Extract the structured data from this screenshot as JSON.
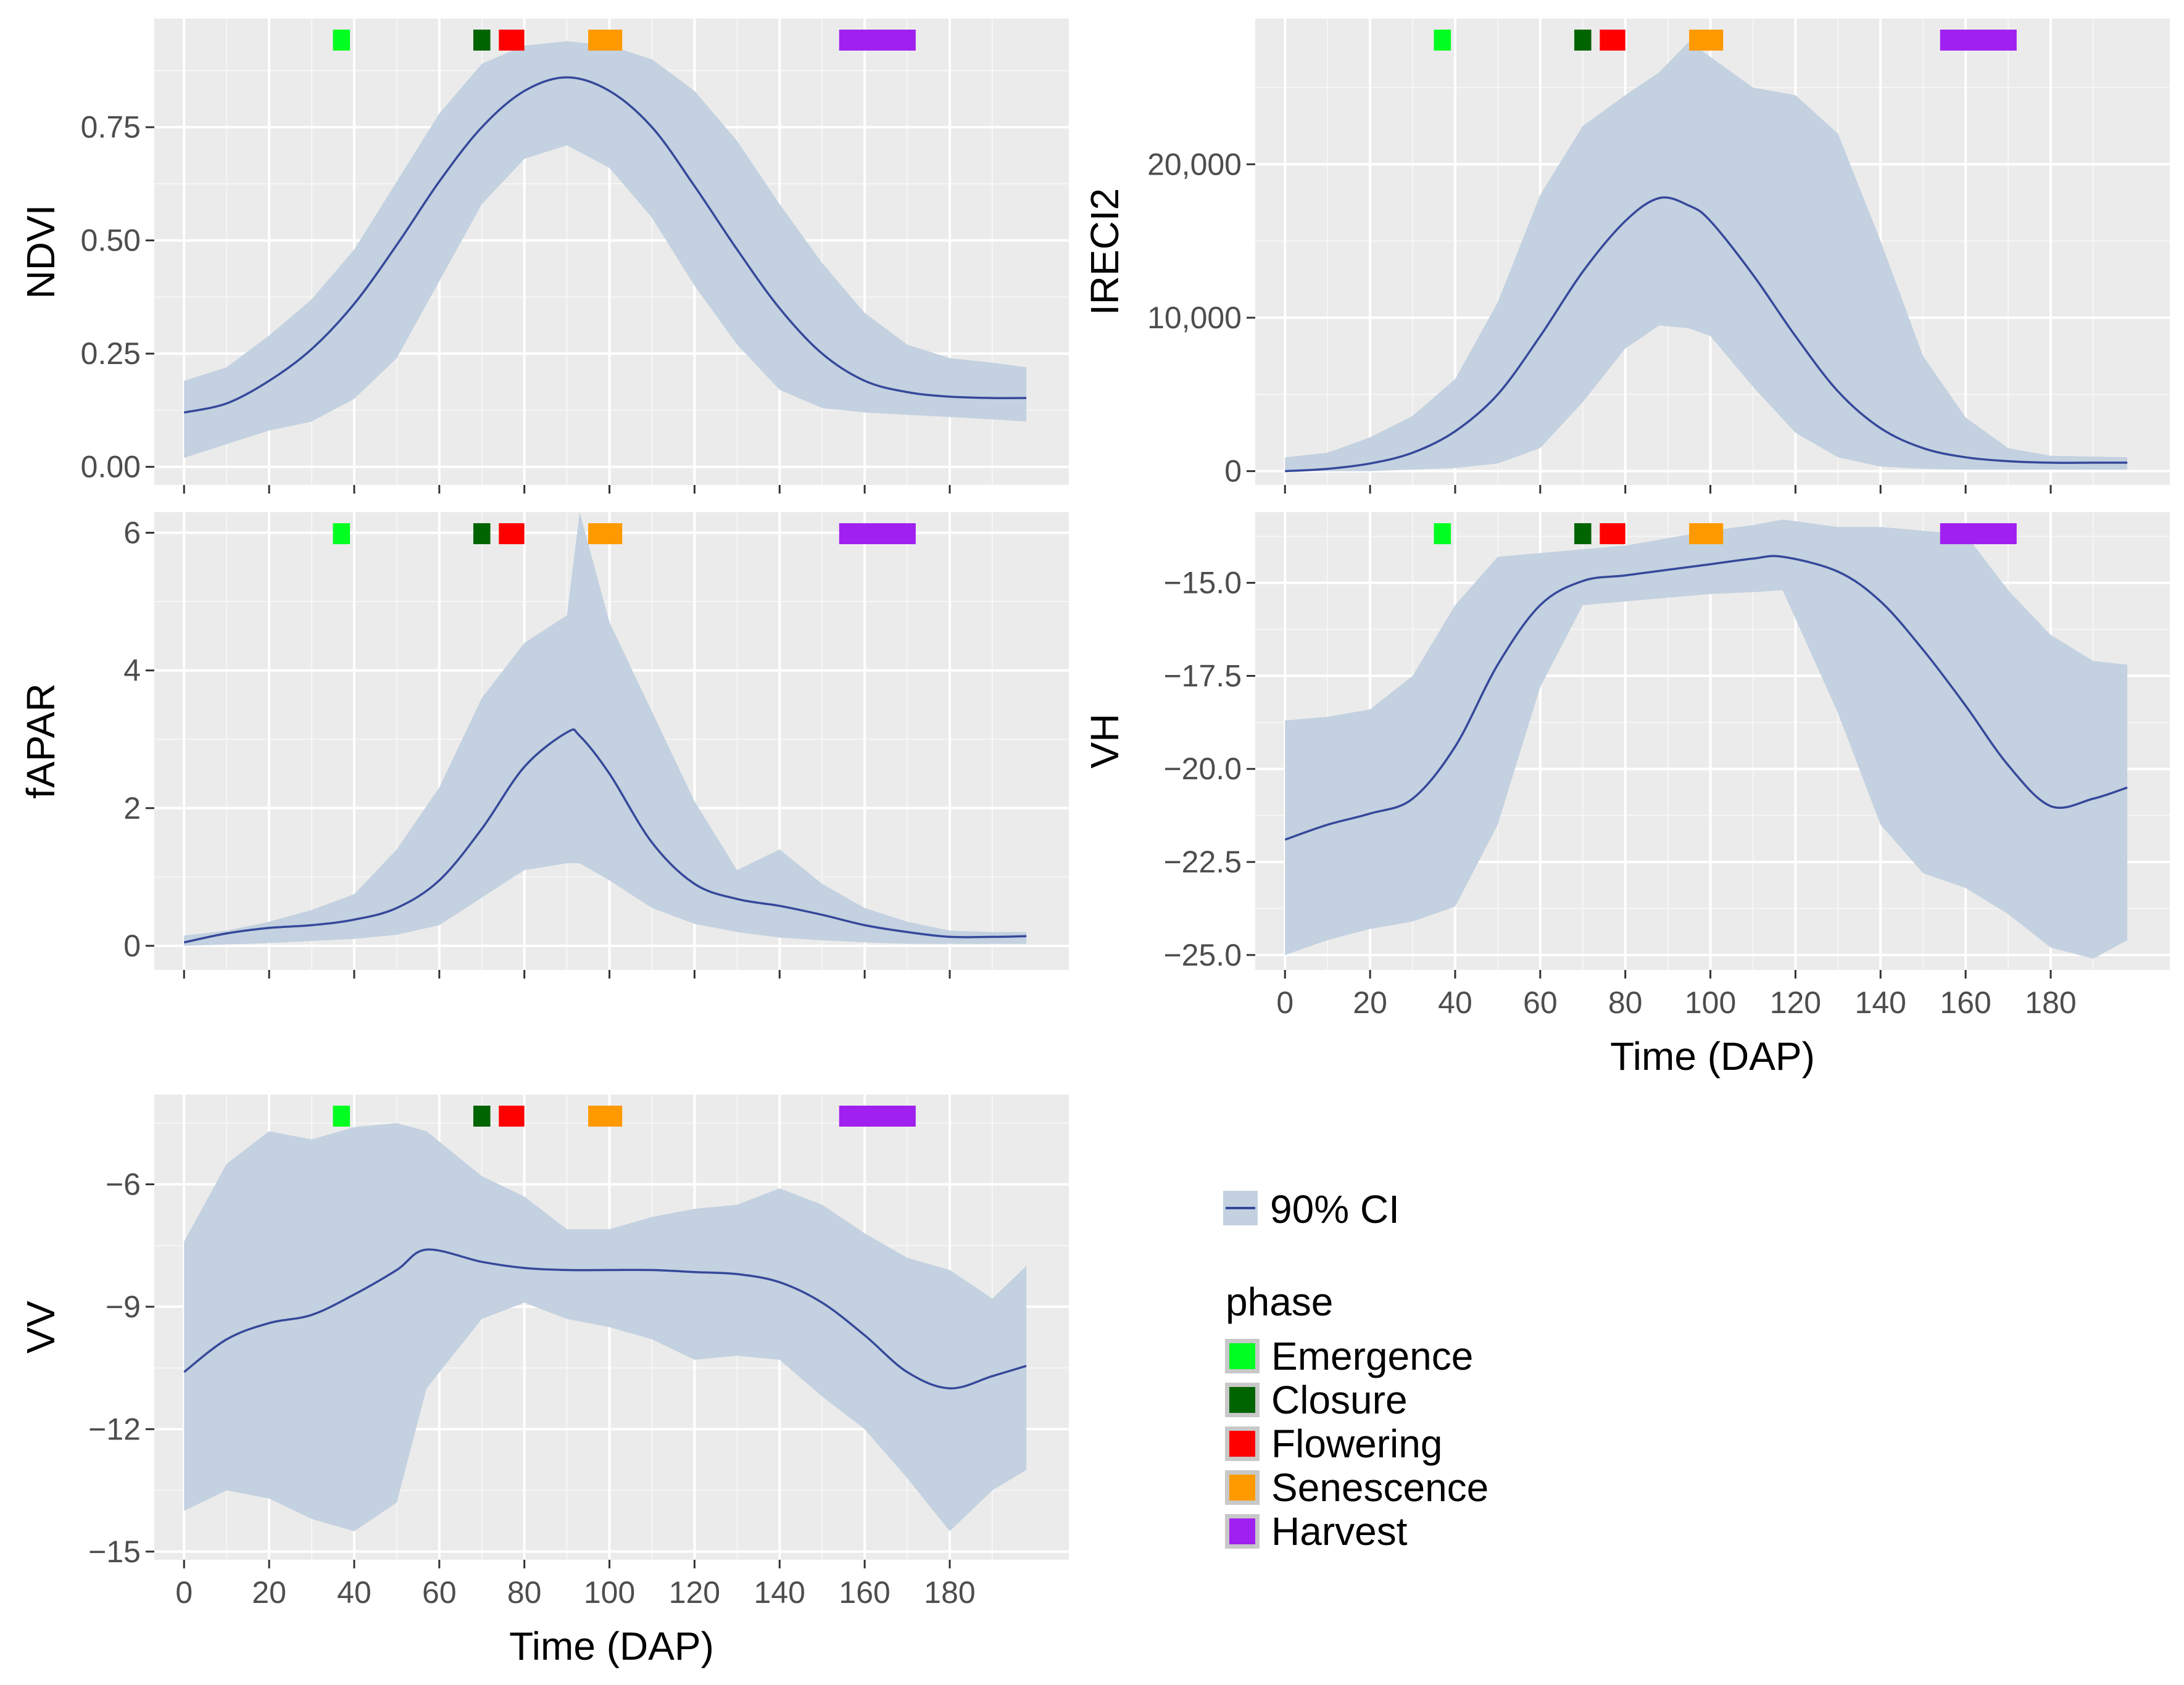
{
  "figure": {
    "x_axis_title": "Time (DAP)",
    "x_ticks": [
      0,
      20,
      40,
      60,
      80,
      100,
      120,
      140,
      160,
      180
    ],
    "x_range": [
      -7,
      208
    ]
  },
  "colors": {
    "panel_bg": "#ebebeb",
    "grid_major": "#ffffff",
    "ribbon": "#c3d1e0",
    "line": "#36489a",
    "tick_text": "#4d4d4d"
  },
  "phases": [
    {
      "name": "Emergence",
      "start": 35,
      "end": 39,
      "color": "#00ff21"
    },
    {
      "name": "Closure",
      "start": 68,
      "end": 72,
      "color": "#006400"
    },
    {
      "name": "Flowering",
      "start": 74,
      "end": 80,
      "color": "#ff0000"
    },
    {
      "name": "Senescence",
      "start": 95,
      "end": 103,
      "color": "#ff9900"
    },
    {
      "name": "Harvest",
      "start": 154,
      "end": 172,
      "color": "#a020f0"
    }
  ],
  "legend": {
    "ci_label": "90% CI",
    "phase_title": "phase",
    "phase_labels": [
      "Emergence",
      "Closure",
      "Flowering",
      "Senescence",
      "Harvest"
    ]
  },
  "chart_data": [
    {
      "type": "line",
      "panel": "NDVI",
      "ylabel": "NDVI",
      "ylim": [
        -0.04,
        0.99
      ],
      "yticks": [
        0.0,
        0.25,
        0.5,
        0.75
      ],
      "ytick_labels": [
        "0.00",
        "0.25",
        "0.50",
        "0.75"
      ],
      "show_x_labels": false,
      "x": [
        0,
        10,
        20,
        30,
        40,
        50,
        60,
        70,
        80,
        90,
        100,
        110,
        120,
        130,
        140,
        150,
        160,
        170,
        180,
        190,
        198
      ],
      "mean": [
        0.12,
        0.14,
        0.19,
        0.26,
        0.36,
        0.49,
        0.63,
        0.75,
        0.83,
        0.86,
        0.83,
        0.75,
        0.62,
        0.48,
        0.35,
        0.25,
        0.19,
        0.165,
        0.155,
        0.152,
        0.152
      ],
      "ci_upper": [
        0.19,
        0.22,
        0.29,
        0.37,
        0.48,
        0.63,
        0.78,
        0.89,
        0.93,
        0.94,
        0.93,
        0.9,
        0.83,
        0.72,
        0.58,
        0.45,
        0.34,
        0.27,
        0.24,
        0.23,
        0.22
      ],
      "ci_lower": [
        0.02,
        0.05,
        0.08,
        0.1,
        0.15,
        0.24,
        0.41,
        0.58,
        0.68,
        0.71,
        0.66,
        0.55,
        0.4,
        0.27,
        0.17,
        0.13,
        0.12,
        0.115,
        0.11,
        0.105,
        0.1
      ]
    },
    {
      "type": "line",
      "panel": "IRECI2",
      "ylabel": "IRECI2",
      "ylim": [
        -900,
        29500
      ],
      "yticks": [
        0,
        10000,
        20000
      ],
      "ytick_labels": [
        "0",
        "10,000",
        "20,000"
      ],
      "show_x_labels": false,
      "x": [
        0,
        10,
        20,
        30,
        40,
        50,
        60,
        70,
        80,
        88,
        95,
        100,
        110,
        120,
        130,
        140,
        150,
        160,
        170,
        180,
        190,
        198
      ],
      "mean": [
        0,
        150,
        500,
        1200,
        2600,
        5000,
        8800,
        13000,
        16300,
        17800,
        17300,
        16300,
        12800,
        8800,
        5200,
        2800,
        1500,
        900,
        650,
        550,
        550,
        550
      ],
      "ci_upper": [
        900,
        1200,
        2200,
        3600,
        6000,
        11000,
        18000,
        22500,
        24500,
        26000,
        28000,
        27000,
        25000,
        24500,
        22000,
        15000,
        7500,
        3500,
        1500,
        1000,
        950,
        900
      ],
      "ci_lower": [
        0,
        0,
        0,
        100,
        200,
        500,
        1500,
        4500,
        8000,
        9500,
        9300,
        8800,
        5500,
        2500,
        900,
        300,
        150,
        100,
        100,
        100,
        100,
        100
      ]
    },
    {
      "type": "line",
      "panel": "fAPAR",
      "ylabel": "fAPAR",
      "ylim": [
        -0.35,
        6.3
      ],
      "yticks": [
        0,
        2,
        4,
        6
      ],
      "ytick_labels": [
        "0",
        "2",
        "4",
        "6"
      ],
      "show_x_labels": false,
      "x": [
        0,
        10,
        20,
        30,
        40,
        50,
        60,
        70,
        80,
        90,
        93,
        100,
        110,
        120,
        130,
        140,
        150,
        160,
        170,
        180,
        190,
        198
      ],
      "mean": [
        0.05,
        0.18,
        0.26,
        0.3,
        0.38,
        0.55,
        0.95,
        1.7,
        2.6,
        3.1,
        3.05,
        2.5,
        1.5,
        0.9,
        0.68,
        0.58,
        0.45,
        0.3,
        0.2,
        0.13,
        0.13,
        0.14
      ],
      "ci_upper": [
        0.15,
        0.22,
        0.35,
        0.52,
        0.75,
        1.4,
        2.3,
        3.6,
        4.4,
        4.8,
        6.3,
        4.7,
        3.4,
        2.1,
        1.1,
        1.4,
        0.9,
        0.55,
        0.35,
        0.22,
        0.2,
        0.2
      ],
      "ci_lower": [
        0.0,
        0.02,
        0.04,
        0.07,
        0.1,
        0.16,
        0.3,
        0.7,
        1.1,
        1.2,
        1.2,
        0.95,
        0.55,
        0.32,
        0.2,
        0.12,
        0.08,
        0.05,
        0.03,
        0.03,
        0.03,
        0.03
      ]
    },
    {
      "type": "line",
      "panel": "VH",
      "ylabel": "VH",
      "ylim": [
        -25.4,
        -13.1
      ],
      "yticks": [
        -25.0,
        -22.5,
        -20.0,
        -17.5,
        -15.0
      ],
      "ytick_labels": [
        "−25.0",
        "−22.5",
        "−20.0",
        "−17.5",
        "−15.0"
      ],
      "show_x_labels": true,
      "x": [
        0,
        10,
        20,
        30,
        40,
        50,
        60,
        70,
        80,
        90,
        100,
        110,
        117,
        130,
        140,
        150,
        160,
        170,
        180,
        190,
        198
      ],
      "mean": [
        -21.9,
        -21.5,
        -21.2,
        -20.8,
        -19.4,
        -17.2,
        -15.6,
        -14.95,
        -14.8,
        -14.65,
        -14.5,
        -14.35,
        -14.3,
        -14.7,
        -15.5,
        -16.8,
        -18.3,
        -19.9,
        -21.0,
        -20.8,
        -20.5
      ],
      "ci_upper": [
        -18.7,
        -18.6,
        -18.4,
        -17.5,
        -15.6,
        -14.3,
        -14.2,
        -14.1,
        -14.0,
        -13.8,
        -13.6,
        -13.45,
        -13.3,
        -13.5,
        -13.5,
        -13.6,
        -13.7,
        -15.2,
        -16.4,
        -17.1,
        -17.2
      ],
      "ci_lower": [
        -25.0,
        -24.6,
        -24.3,
        -24.1,
        -23.7,
        -21.5,
        -17.8,
        -15.6,
        -15.5,
        -15.4,
        -15.3,
        -15.25,
        -15.2,
        -18.5,
        -21.5,
        -22.8,
        -23.2,
        -23.9,
        -24.8,
        -25.1,
        -24.6
      ]
    },
    {
      "type": "line",
      "panel": "VV",
      "ylabel": "VV",
      "ylim": [
        -15.2,
        -3.8
      ],
      "yticks": [
        -15,
        -12,
        -9,
        -6
      ],
      "ytick_labels": [
        "−15",
        "−12",
        "−9",
        "−6"
      ],
      "show_x_labels": true,
      "x": [
        0,
        10,
        20,
        30,
        40,
        50,
        57,
        70,
        80,
        90,
        100,
        110,
        120,
        130,
        140,
        150,
        160,
        170,
        180,
        190,
        198
      ],
      "mean": [
        -10.6,
        -9.8,
        -9.4,
        -9.2,
        -8.7,
        -8.1,
        -7.6,
        -7.9,
        -8.05,
        -8.1,
        -8.1,
        -8.1,
        -8.15,
        -8.2,
        -8.4,
        -8.9,
        -9.7,
        -10.6,
        -11.0,
        -10.7,
        -10.45
      ],
      "ci_upper": [
        -7.4,
        -5.5,
        -4.7,
        -4.9,
        -4.6,
        -4.5,
        -4.7,
        -5.8,
        -6.3,
        -7.1,
        -7.1,
        -6.8,
        -6.6,
        -6.5,
        -6.1,
        -6.5,
        -7.2,
        -7.8,
        -8.1,
        -8.8,
        -8.0
      ],
      "ci_lower": [
        -14.0,
        -13.5,
        -13.7,
        -14.2,
        -14.5,
        -13.8,
        -11.0,
        -9.3,
        -8.9,
        -9.3,
        -9.5,
        -9.8,
        -10.3,
        -10.2,
        -10.3,
        -11.2,
        -12.0,
        -13.2,
        -14.5,
        -13.5,
        -13.0
      ]
    }
  ]
}
